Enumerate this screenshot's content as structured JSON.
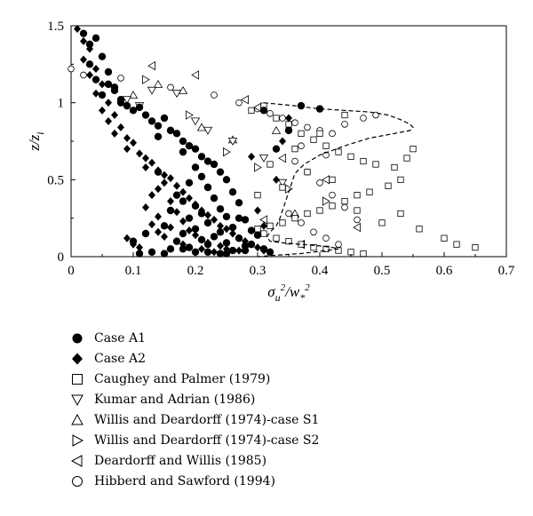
{
  "chart_data": {
    "type": "scatter",
    "xlabel": "σ_u²/w_*²",
    "ylabel": "z/z_i",
    "xlim": [
      0,
      0.7
    ],
    "ylim": [
      0,
      1.5
    ],
    "xticks": [
      "0",
      "0.1",
      "0.2",
      "0.3",
      "0.4",
      "0.5",
      "0.6",
      "0.7"
    ],
    "yticks": [
      "0",
      "0.5",
      "1",
      "1.5"
    ],
    "grid": false,
    "legend_position": "below-plot",
    "series": [
      {
        "name": "Case A1",
        "marker": "filled-circle",
        "color": "#000000",
        "x": [
          0.02,
          0.03,
          0.04,
          0.05,
          0.03,
          0.06,
          0.04,
          0.07,
          0.05,
          0.08,
          0.06,
          0.09,
          0.07,
          0.1,
          0.08,
          0.12,
          0.13,
          0.11,
          0.14,
          0.15,
          0.16,
          0.14,
          0.17,
          0.18,
          0.19,
          0.2,
          0.18,
          0.21,
          0.22,
          0.23,
          0.2,
          0.24,
          0.21,
          0.25,
          0.19,
          0.22,
          0.26,
          0.17,
          0.23,
          0.18,
          0.27,
          0.2,
          0.24,
          0.16,
          0.21,
          0.25,
          0.19,
          0.28,
          0.22,
          0.15,
          0.26,
          0.2,
          0.29,
          0.24,
          0.18,
          0.3,
          0.23,
          0.27,
          0.21,
          0.17,
          0.25,
          0.22,
          0.28,
          0.19,
          0.31,
          0.16,
          0.26,
          0.2,
          0.24,
          0.15,
          0.29,
          0.27,
          0.22,
          0.33,
          0.35,
          0.31,
          0.37,
          0.4,
          0.13,
          0.11,
          0.1,
          0.12,
          0.14,
          0.18,
          0.22,
          0.25,
          0.28,
          0.32
        ],
        "y": [
          1.45,
          1.38,
          1.42,
          1.3,
          1.25,
          1.2,
          1.15,
          1.1,
          1.05,
          1.0,
          1.12,
          0.98,
          1.08,
          0.95,
          1.02,
          0.92,
          0.88,
          0.97,
          0.85,
          0.9,
          0.82,
          0.78,
          0.8,
          0.75,
          0.72,
          0.7,
          0.68,
          0.65,
          0.62,
          0.6,
          0.58,
          0.55,
          0.52,
          0.5,
          0.48,
          0.45,
          0.42,
          0.4,
          0.38,
          0.36,
          0.35,
          0.33,
          0.31,
          0.3,
          0.28,
          0.26,
          0.25,
          0.24,
          0.22,
          0.2,
          0.19,
          0.18,
          0.17,
          0.16,
          0.15,
          0.14,
          0.13,
          0.12,
          0.11,
          0.1,
          0.09,
          0.08,
          0.07,
          0.06,
          0.05,
          0.05,
          0.04,
          0.03,
          0.02,
          0.02,
          0.08,
          0.25,
          0.45,
          0.7,
          0.82,
          0.95,
          0.98,
          0.96,
          0.03,
          0.02,
          0.1,
          0.15,
          0.55,
          0.05,
          0.03,
          0.02,
          0.04,
          0.03
        ]
      },
      {
        "name": "Case A2",
        "marker": "filled-diamond",
        "color": "#000000",
        "x": [
          0.01,
          0.02,
          0.03,
          0.02,
          0.04,
          0.03,
          0.05,
          0.04,
          0.06,
          0.05,
          0.07,
          0.06,
          0.08,
          0.07,
          0.09,
          0.1,
          0.09,
          0.11,
          0.12,
          0.13,
          0.12,
          0.14,
          0.15,
          0.16,
          0.15,
          0.17,
          0.14,
          0.18,
          0.13,
          0.19,
          0.16,
          0.2,
          0.12,
          0.21,
          0.17,
          0.22,
          0.14,
          0.23,
          0.18,
          0.13,
          0.24,
          0.16,
          0.25,
          0.19,
          0.14,
          0.26,
          0.2,
          0.15,
          0.27,
          0.21,
          0.17,
          0.28,
          0.22,
          0.18,
          0.29,
          0.24,
          0.19,
          0.3,
          0.25,
          0.21,
          0.31,
          0.27,
          0.23,
          0.32,
          0.33,
          0.29,
          0.34,
          0.35,
          0.3,
          0.31,
          0.09,
          0.1,
          0.11
        ],
        "y": [
          1.48,
          1.4,
          1.35,
          1.28,
          1.22,
          1.18,
          1.12,
          1.06,
          1.0,
          0.95,
          0.92,
          0.88,
          0.84,
          0.8,
          0.77,
          0.74,
          0.7,
          0.67,
          0.64,
          0.61,
          0.58,
          0.56,
          0.53,
          0.51,
          0.48,
          0.46,
          0.44,
          0.42,
          0.4,
          0.38,
          0.36,
          0.34,
          0.32,
          0.3,
          0.29,
          0.27,
          0.26,
          0.24,
          0.23,
          0.21,
          0.2,
          0.19,
          0.18,
          0.17,
          0.16,
          0.15,
          0.14,
          0.13,
          0.12,
          0.11,
          0.1,
          0.1,
          0.09,
          0.08,
          0.08,
          0.07,
          0.06,
          0.06,
          0.05,
          0.05,
          0.04,
          0.04,
          0.03,
          0.03,
          0.5,
          0.65,
          0.75,
          0.9,
          0.3,
          0.2,
          0.12,
          0.08,
          0.06
        ]
      },
      {
        "name": "Caughey and Palmer (1979)",
        "marker": "open-square",
        "color": "#000000",
        "x": [
          0.29,
          0.31,
          0.33,
          0.35,
          0.37,
          0.39,
          0.41,
          0.43,
          0.45,
          0.47,
          0.49,
          0.52,
          0.54,
          0.55,
          0.53,
          0.51,
          0.48,
          0.46,
          0.44,
          0.42,
          0.4,
          0.38,
          0.36,
          0.34,
          0.32,
          0.3,
          0.31,
          0.33,
          0.35,
          0.37,
          0.39,
          0.41,
          0.43,
          0.45,
          0.47,
          0.5,
          0.53,
          0.56,
          0.6,
          0.62,
          0.65,
          0.46,
          0.42,
          0.38,
          0.34,
          0.3,
          0.32,
          0.36,
          0.4,
          0.44
        ],
        "y": [
          0.95,
          0.98,
          0.9,
          0.86,
          0.8,
          0.76,
          0.72,
          0.68,
          0.65,
          0.62,
          0.6,
          0.58,
          0.64,
          0.7,
          0.5,
          0.46,
          0.42,
          0.4,
          0.36,
          0.33,
          0.3,
          0.28,
          0.25,
          0.22,
          0.2,
          0.18,
          0.15,
          0.12,
          0.1,
          0.08,
          0.06,
          0.05,
          0.04,
          0.03,
          0.02,
          0.22,
          0.28,
          0.18,
          0.12,
          0.08,
          0.06,
          0.3,
          0.5,
          0.55,
          0.45,
          0.4,
          0.6,
          0.7,
          0.8,
          0.92
        ]
      },
      {
        "name": "Kumar and Adrian (1986)",
        "marker": "open-triangle-down",
        "color": "#000000",
        "x": [
          0.09,
          0.11,
          0.13,
          0.17,
          0.2,
          0.22,
          0.26,
          0.31,
          0.34
        ],
        "y": [
          1.02,
          0.98,
          1.08,
          1.06,
          0.88,
          0.82,
          0.75,
          0.64,
          0.48
        ]
      },
      {
        "name": "Willis and Deardorff (1974)-case S1",
        "marker": "open-triangle-up",
        "color": "#000000",
        "x": [
          0.1,
          0.14,
          0.18,
          0.21,
          0.26,
          0.33,
          0.36
        ],
        "y": [
          1.05,
          1.12,
          1.08,
          0.84,
          0.76,
          0.82,
          0.28
        ]
      },
      {
        "name": "Willis and Deardorff (1974)-case S2",
        "marker": "open-triangle-right",
        "color": "#000000",
        "x": [
          0.12,
          0.19,
          0.25,
          0.3,
          0.35,
          0.41
        ],
        "y": [
          1.15,
          0.92,
          0.68,
          0.58,
          0.44,
          0.36
        ]
      },
      {
        "name": "Deardorff and Willis (1985)",
        "marker": "open-triangle-left",
        "color": "#000000",
        "x": [
          0.13,
          0.2,
          0.28,
          0.3,
          0.41,
          0.46,
          0.34,
          0.37,
          0.31
        ],
        "y": [
          1.24,
          1.18,
          1.02,
          0.97,
          0.5,
          0.19,
          0.64,
          0.08,
          0.24
        ]
      },
      {
        "name": "Hibberd and Sawford (1994)",
        "marker": "open-circle",
        "color": "#000000",
        "x": [
          0.0,
          0.02,
          0.08,
          0.16,
          0.23,
          0.27,
          0.3,
          0.32,
          0.34,
          0.36,
          0.38,
          0.4,
          0.42,
          0.44,
          0.47,
          0.49,
          0.36,
          0.38,
          0.4,
          0.42,
          0.44,
          0.46,
          0.35,
          0.37,
          0.39,
          0.41,
          0.43,
          0.33,
          0.37,
          0.41
        ],
        "y": [
          1.22,
          1.18,
          1.16,
          1.1,
          1.05,
          1.0,
          0.96,
          0.93,
          0.9,
          0.87,
          0.84,
          0.82,
          0.8,
          0.86,
          0.9,
          0.92,
          0.62,
          0.55,
          0.48,
          0.4,
          0.32,
          0.24,
          0.28,
          0.22,
          0.16,
          0.12,
          0.08,
          0.7,
          0.72,
          0.66
        ]
      },
      {
        "name": "",
        "marker": "dashed-line",
        "color": "#000000",
        "x": [
          0.31,
          0.36,
          0.4,
          0.44,
          0.48,
          0.51,
          0.53,
          0.545,
          0.55,
          0.545,
          0.52,
          0.48,
          0.44,
          0.4,
          0.375,
          0.36,
          0.355,
          0.35,
          0.345,
          0.34,
          0.335,
          0.33,
          0.32,
          0.315,
          0.32,
          0.34,
          0.37,
          0.4,
          0.42,
          0.43,
          0.41,
          0.37,
          0.33,
          0.3
        ],
        "y": [
          1.0,
          0.98,
          0.96,
          0.95,
          0.94,
          0.92,
          0.89,
          0.86,
          0.84,
          0.82,
          0.8,
          0.77,
          0.72,
          0.66,
          0.6,
          0.54,
          0.48,
          0.42,
          0.36,
          0.3,
          0.24,
          0.2,
          0.16,
          0.13,
          0.1,
          0.09,
          0.08,
          0.07,
          0.06,
          0.05,
          0.04,
          0.02,
          0.01,
          0.0
        ]
      }
    ]
  }
}
